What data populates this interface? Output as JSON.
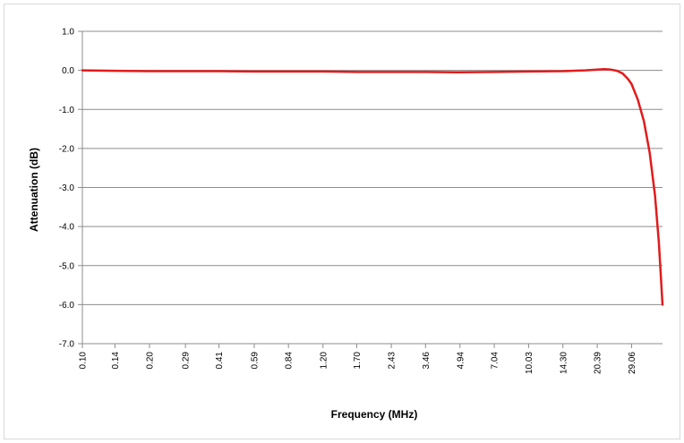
{
  "chart_data": {
    "type": "line",
    "title": "",
    "xlabel": "Frequency (MHz)",
    "ylabel": "Attenuation (dB)",
    "ylim": [
      -7.0,
      1.0
    ],
    "yticks": [
      "1.0",
      "0.0",
      "-1.0",
      "-2.0",
      "-3.0",
      "-4.0",
      "-5.0",
      "-6.0",
      "-7.0"
    ],
    "ytick_values": [
      1.0,
      0.0,
      -1.0,
      -2.0,
      -3.0,
      -4.0,
      -5.0,
      -6.0,
      -7.0
    ],
    "x_scale": "log",
    "xlim": [
      0.1,
      40.0
    ],
    "xticks": [
      "0.10",
      "0.14",
      "0.20",
      "0.29",
      "0.41",
      "0.59",
      "0.84",
      "1.20",
      "1.70",
      "2.43",
      "3.46",
      "4.94",
      "7.04",
      "10.03",
      "14.30",
      "20.39",
      "29.06"
    ],
    "xtick_values": [
      0.1,
      0.14,
      0.2,
      0.29,
      0.41,
      0.59,
      0.84,
      1.2,
      1.7,
      2.43,
      3.46,
      4.94,
      7.04,
      10.03,
      14.3,
      20.39,
      29.06
    ],
    "grid": "horizontal",
    "legend": "none",
    "series": [
      {
        "color": "#e21b1b",
        "x": [
          0.1,
          0.14,
          0.2,
          0.29,
          0.41,
          0.59,
          0.84,
          1.2,
          1.7,
          2.43,
          3.46,
          4.94,
          7.04,
          10.03,
          14.3,
          18.0,
          20.39,
          22.0,
          23.5,
          25.0,
          26.5,
          28.0,
          29.06,
          31.0,
          33.0,
          35.0,
          37.0,
          38.5,
          40.0
        ],
        "y": [
          0.0,
          -0.01,
          -0.02,
          -0.02,
          -0.02,
          -0.03,
          -0.03,
          -0.03,
          -0.04,
          -0.04,
          -0.04,
          -0.05,
          -0.04,
          -0.03,
          -0.02,
          0.0,
          0.02,
          0.03,
          0.02,
          -0.01,
          -0.08,
          -0.22,
          -0.35,
          -0.75,
          -1.3,
          -2.1,
          -3.2,
          -4.4,
          -6.0
        ]
      }
    ]
  }
}
